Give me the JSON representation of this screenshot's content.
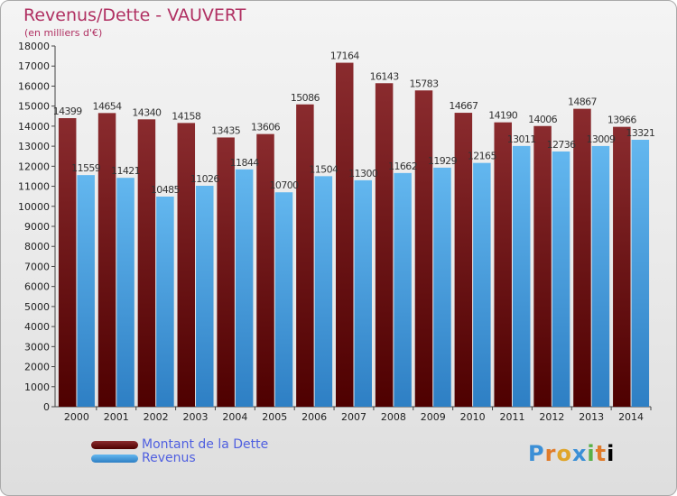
{
  "header": {
    "title": "Revenus/Dette - VAUVERT",
    "subtitle": "(en milliers d'€)"
  },
  "logo": {
    "text": "Proxiti"
  },
  "colors": {
    "dette_top": "#8a2b2e",
    "dette_bottom": "#4e0000",
    "revenus_top": "#63b7ef",
    "revenus_bottom": "#2e7fc4"
  },
  "chart_data": {
    "type": "bar",
    "categories": [
      "2000",
      "2001",
      "2002",
      "2003",
      "2004",
      "2005",
      "2006",
      "2007",
      "2008",
      "2009",
      "2010",
      "2011",
      "2012",
      "2013",
      "2014"
    ],
    "series": [
      {
        "name": "Montant de la Dette",
        "values": [
          14399,
          14654,
          14340,
          14158,
          13435,
          13606,
          15086,
          17164,
          16143,
          15783,
          14667,
          14190,
          14006,
          14867,
          13966
        ]
      },
      {
        "name": "Revenus",
        "values": [
          11559,
          11421,
          10485,
          11026,
          11844,
          10700,
          11504,
          11300,
          11662,
          11929,
          12165,
          13011,
          12736,
          13009,
          13321
        ]
      }
    ],
    "yticks": [
      0,
      1000,
      2000,
      3000,
      4000,
      5000,
      6000,
      7000,
      8000,
      9000,
      10000,
      11000,
      12000,
      13000,
      14000,
      15000,
      16000,
      17000,
      18000
    ],
    "ylim": [
      0,
      18000
    ],
    "grid": false,
    "legend": "bottom-left"
  }
}
